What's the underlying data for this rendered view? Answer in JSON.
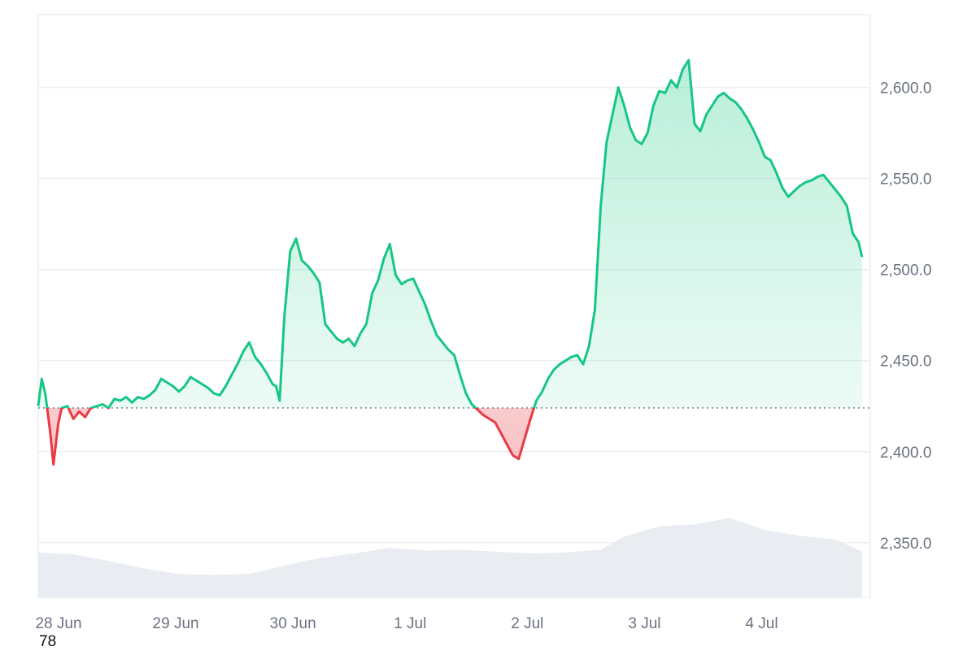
{
  "corner_text": "78",
  "colors": {
    "up_line": "#16c784",
    "down_line": "#ea3943",
    "up_fill": "#16c784",
    "down_fill": "#ea3943",
    "volume": "#e9ecf0",
    "grid": "#eceff2",
    "axis_text": "#6b7280",
    "baseline": "#6b7280"
  },
  "chart_data": {
    "type": "area",
    "ylim": [
      2320,
      2640
    ],
    "y_ticks": [
      2350,
      2400,
      2450,
      2500,
      2550,
      2600
    ],
    "y_tick_labels": [
      "2,350.0",
      "2,400.0",
      "2,450.0",
      "2,500.0",
      "2,550.0",
      "2,600.0"
    ],
    "x_range": [
      0,
      7.1
    ],
    "x_ticks": [
      0,
      1,
      2,
      3,
      4,
      5,
      6
    ],
    "x_tick_labels": [
      "28 Jun",
      "29 Jun",
      "30 Jun",
      "1 Jul",
      "2 Jul",
      "3 Jul",
      "4 Jul"
    ],
    "baseline": 2424,
    "grid": true,
    "series": [
      {
        "x": [
          0,
          0.03,
          0.06,
          0.1,
          0.13,
          0.17,
          0.2,
          0.25,
          0.3,
          0.35,
          0.4,
          0.45,
          0.5,
          0.55,
          0.6,
          0.65,
          0.7,
          0.75,
          0.8,
          0.85,
          0.9,
          0.95,
          1.0,
          1.05,
          1.1,
          1.15,
          1.2,
          1.25,
          1.3,
          1.35,
          1.4,
          1.45,
          1.5,
          1.55,
          1.6,
          1.65,
          1.7,
          1.75,
          1.8,
          1.85,
          1.9,
          1.95,
          2.0,
          2.03,
          2.06,
          2.1,
          2.15,
          2.2,
          2.25,
          2.3,
          2.35,
          2.4,
          2.45,
          2.5,
          2.55,
          2.6,
          2.65,
          2.7,
          2.75,
          2.8,
          2.85,
          2.9,
          2.95,
          3.0,
          3.05,
          3.1,
          3.15,
          3.2,
          3.25,
          3.3,
          3.35,
          3.4,
          3.45,
          3.5,
          3.55,
          3.6,
          3.65,
          3.7,
          3.75,
          3.8,
          3.85,
          3.9,
          3.95,
          4.0,
          4.05,
          4.1,
          4.15,
          4.2,
          4.25,
          4.3,
          4.35,
          4.4,
          4.45,
          4.5,
          4.55,
          4.6,
          4.65,
          4.7,
          4.75,
          4.8,
          4.85,
          4.9,
          4.95,
          5.0,
          5.05,
          5.1,
          5.15,
          5.2,
          5.25,
          5.3,
          5.35,
          5.4,
          5.45,
          5.5,
          5.55,
          5.6,
          5.65,
          5.7,
          5.75,
          5.8,
          5.85,
          5.9,
          5.95,
          6.0,
          6.05,
          6.1,
          6.15,
          6.2,
          6.25,
          6.3,
          6.35,
          6.4,
          6.45,
          6.5,
          6.55,
          6.6,
          6.65,
          6.7,
          6.75,
          6.8,
          6.85,
          6.9,
          6.95,
          7.0,
          7.03
        ],
        "values": [
          2425,
          2440,
          2432,
          2412,
          2393,
          2415,
          2424,
          2425,
          2418,
          2422,
          2419,
          2424,
          2425,
          2426,
          2424,
          2429,
          2428,
          2430,
          2427,
          2430,
          2429,
          2431,
          2434,
          2440,
          2438,
          2436,
          2433,
          2436,
          2441,
          2439,
          2437,
          2435,
          2432,
          2431,
          2436,
          2442,
          2448,
          2455,
          2460,
          2452,
          2448,
          2443,
          2437,
          2436,
          2428,
          2474,
          2510,
          2517,
          2505,
          2502,
          2498,
          2493,
          2470,
          2466,
          2462,
          2460,
          2462,
          2458,
          2465,
          2470,
          2487,
          2494,
          2506,
          2514,
          2497,
          2492,
          2494,
          2495,
          2488,
          2481,
          2472,
          2464,
          2460,
          2456,
          2453,
          2442,
          2432,
          2426,
          2423,
          2420,
          2418,
          2416,
          2410,
          2404,
          2398,
          2396,
          2407,
          2418,
          2428,
          2433,
          2440,
          2445,
          2448,
          2450,
          2452,
          2453,
          2448,
          2458,
          2478,
          2535,
          2570,
          2585,
          2600,
          2590,
          2578,
          2571,
          2569,
          2575,
          2590,
          2598,
          2597,
          2604,
          2600,
          2610,
          2615,
          2580,
          2576,
          2585,
          2590,
          2595,
          2597,
          2594,
          2592,
          2588,
          2583,
          2577,
          2570,
          2562,
          2560,
          2553,
          2545,
          2540,
          2543,
          2546,
          2548,
          2549,
          2551,
          2552,
          2548,
          2544,
          2540,
          2535,
          2520,
          2515,
          2507
        ]
      }
    ],
    "volume": {
      "x": [
        0,
        0.3,
        0.6,
        0.9,
        1.2,
        1.5,
        1.8,
        2.1,
        2.4,
        2.7,
        3.0,
        3.3,
        3.6,
        3.9,
        4.2,
        4.5,
        4.8,
        5.0,
        5.3,
        5.6,
        5.9,
        6.2,
        6.5,
        6.8,
        7.03
      ],
      "values": [
        0.48,
        0.46,
        0.39,
        0.31,
        0.25,
        0.24,
        0.25,
        0.34,
        0.42,
        0.47,
        0.53,
        0.5,
        0.51,
        0.49,
        0.47,
        0.48,
        0.51,
        0.65,
        0.76,
        0.78,
        0.85,
        0.72,
        0.66,
        0.62,
        0.49
      ]
    }
  }
}
